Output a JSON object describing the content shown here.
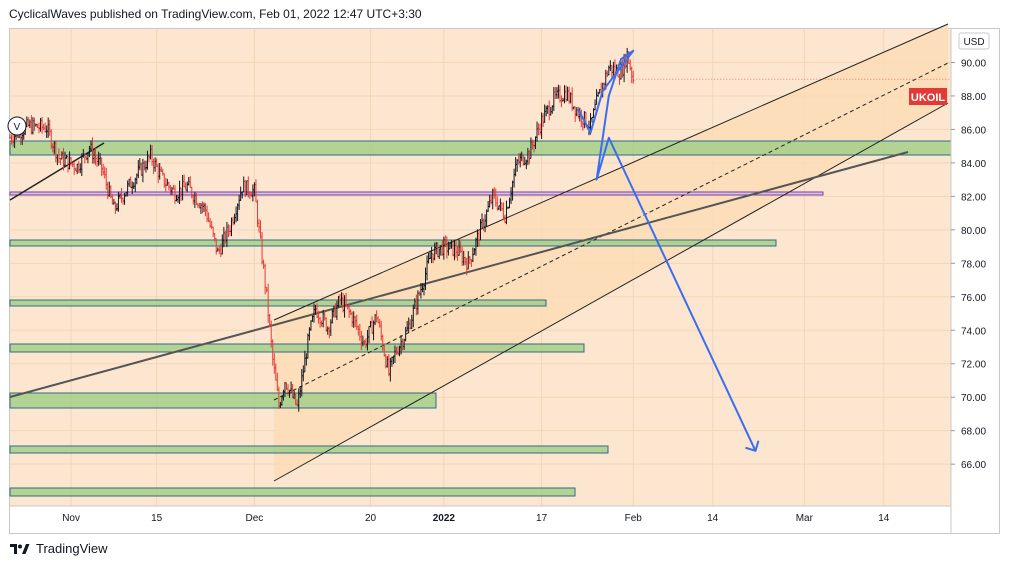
{
  "header": {
    "published_text": "CyclicalWaves published on TradingView.com, Feb 01, 2022 12:47 UTC+3:30"
  },
  "footer": {
    "brand": "TradingView"
  },
  "chart_data": {
    "type": "candlestick",
    "symbol": "UKOIL",
    "currency": "USD",
    "last_price": 89.0,
    "y_ticks": [
      66,
      68,
      70,
      72,
      74,
      76,
      78,
      80,
      82,
      84,
      86,
      88,
      90
    ],
    "ylim": [
      63.5,
      92.0
    ],
    "x_tick_labels": [
      {
        "label": "Nov",
        "day": 0
      },
      {
        "label": "15",
        "day": 14
      },
      {
        "label": "Dec",
        "day": 30
      },
      {
        "label": "20",
        "day": 49
      },
      {
        "label": "2022",
        "day": 61
      },
      {
        "label": "17",
        "day": 77
      },
      {
        "label": "Feb",
        "day": 92
      },
      {
        "label": "14",
        "day": 105
      },
      {
        "label": "Mar",
        "day": 120
      },
      {
        "label": "14",
        "day": 133
      }
    ],
    "xlim_days": [
      -10,
      144
    ],
    "colors": {
      "up": "#131722",
      "down": "#e53935",
      "zone_fill": "#a5cf88",
      "zone_border": "#2e6b8a",
      "channel_fill": "#fbdcb6",
      "channel_line": "#222222",
      "trend": "#555555",
      "path": "#3a6df0",
      "label_bg": "#e53935",
      "support_purple": "#7a3fa0"
    },
    "price_path": [
      {
        "day": -10,
        "close": 85.5
      },
      {
        "day": -7,
        "close": 86.2
      },
      {
        "day": -4,
        "close": 86.1
      },
      {
        "day": -2,
        "close": 84.3
      },
      {
        "day": 1,
        "close": 83.8
      },
      {
        "day": 3,
        "close": 84.9
      },
      {
        "day": 5,
        "close": 83.7
      },
      {
        "day": 7,
        "close": 81.2
      },
      {
        "day": 9,
        "close": 82.4
      },
      {
        "day": 11,
        "close": 83.4
      },
      {
        "day": 13,
        "close": 84.4
      },
      {
        "day": 15,
        "close": 83.0
      },
      {
        "day": 17,
        "close": 82.2
      },
      {
        "day": 19,
        "close": 82.6
      },
      {
        "day": 22,
        "close": 81.2
      },
      {
        "day": 24,
        "close": 78.6
      },
      {
        "day": 26,
        "close": 80.2
      },
      {
        "day": 28,
        "close": 82.6
      },
      {
        "day": 30,
        "close": 82.3
      },
      {
        "day": 32,
        "close": 76.0
      },
      {
        "day": 33,
        "close": 72.2
      },
      {
        "day": 34,
        "close": 69.5
      },
      {
        "day": 35,
        "close": 71.0
      },
      {
        "day": 37,
        "close": 69.4
      },
      {
        "day": 39,
        "close": 73.8
      },
      {
        "day": 40,
        "close": 75.3
      },
      {
        "day": 42,
        "close": 74.2
      },
      {
        "day": 44,
        "close": 75.8
      },
      {
        "day": 46,
        "close": 74.8
      },
      {
        "day": 48,
        "close": 73.2
      },
      {
        "day": 50,
        "close": 74.9
      },
      {
        "day": 52,
        "close": 71.4
      },
      {
        "day": 53,
        "close": 72.6
      },
      {
        "day": 55,
        "close": 74.0
      },
      {
        "day": 57,
        "close": 76.2
      },
      {
        "day": 59,
        "close": 78.6
      },
      {
        "day": 61,
        "close": 79.0
      },
      {
        "day": 63,
        "close": 78.8
      },
      {
        "day": 65,
        "close": 78.0
      },
      {
        "day": 67,
        "close": 80.0
      },
      {
        "day": 69,
        "close": 82.0
      },
      {
        "day": 71,
        "close": 80.9
      },
      {
        "day": 73,
        "close": 84.0
      },
      {
        "day": 75,
        "close": 84.6
      },
      {
        "day": 77,
        "close": 86.5
      },
      {
        "day": 79,
        "close": 87.8
      },
      {
        "day": 81,
        "close": 88.2
      },
      {
        "day": 83,
        "close": 87.0
      },
      {
        "day": 85,
        "close": 86.2
      },
      {
        "day": 86,
        "close": 87.6
      },
      {
        "day": 88,
        "close": 89.7
      },
      {
        "day": 90,
        "close": 89.4
      },
      {
        "day": 91,
        "close": 90.5
      },
      {
        "day": 92,
        "close": 89.0
      }
    ],
    "projection_path": [
      {
        "day": 83,
        "price": 87.2
      },
      {
        "day": 85,
        "price": 85.8
      },
      {
        "day": 87,
        "price": 88.3
      },
      {
        "day": 92,
        "price": 90.7
      },
      {
        "day": 90,
        "price": 90.2
      },
      {
        "day": 88,
        "price": 88.0
      },
      {
        "day": 86,
        "price": 83.0
      },
      {
        "day": 88,
        "price": 85.5
      },
      {
        "day": 112,
        "price": 66.8
      }
    ]
  }
}
